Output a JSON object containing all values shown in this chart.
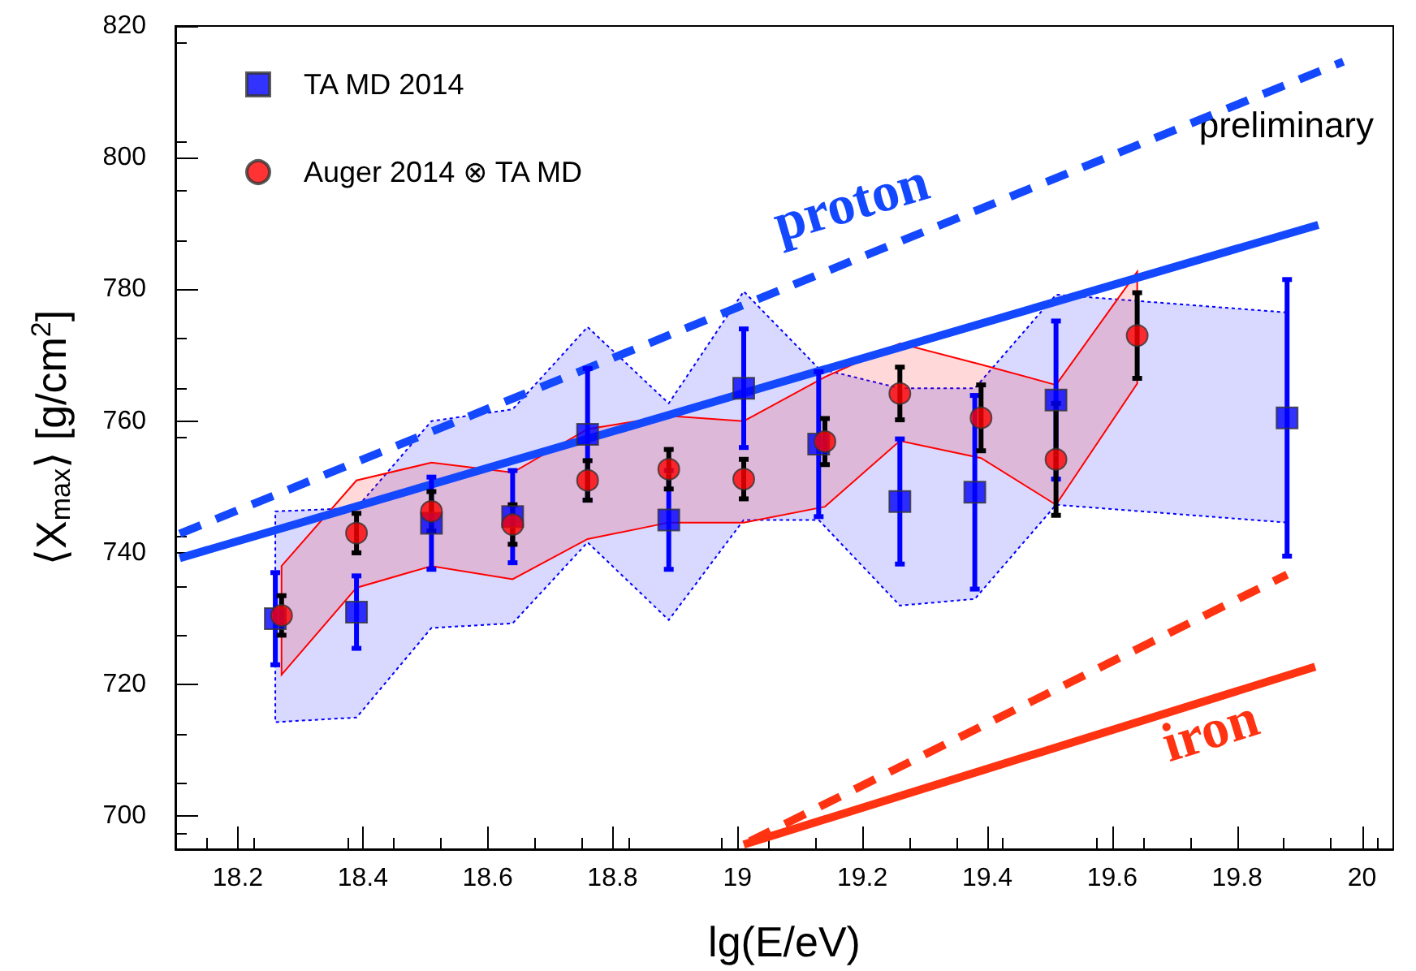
{
  "chart_data": {
    "type": "scatter",
    "xlabel": "lg(E/eV)",
    "ylabel": "⟨X$_{max}$⟩ [g/cm$^{2}$]",
    "xlim": [
      18.1,
      20.05
    ],
    "xticks": [
      18.2,
      18.4,
      18.6,
      18.8,
      19,
      19.2,
      19.4,
      19.6,
      19.8,
      20
    ],
    "ylim": [
      695,
      820
    ],
    "yticks": [
      700,
      720,
      740,
      760,
      780,
      800,
      820
    ],
    "grid": false,
    "legend": "top left",
    "annotations": [
      "preliminary",
      "proton",
      "iron"
    ],
    "series": [
      {
        "name": "TA MD 2014",
        "marker": "square",
        "color": "#0000ff",
        "x": [
          18.26,
          18.39,
          18.51,
          18.64,
          18.76,
          18.89,
          19.01,
          19.13,
          19.26,
          19.38,
          19.51,
          19.88
        ],
        "values": [
          730,
          731,
          744.5,
          745.5,
          758,
          745,
          765,
          756.5,
          747.8,
          749.2,
          763.2,
          760.5
        ],
        "errors": [
          7,
          5.5,
          7,
          7,
          10,
          7.5,
          9,
          11,
          9.5,
          14.7,
          12,
          21
        ],
        "lower": [
          714.3,
          715,
          728.6,
          729.3,
          741.6,
          729.8,
          745,
          745,
          732,
          733,
          747.3,
          744.6
        ],
        "upper": [
          746.3,
          746.8,
          760,
          761.8,
          774.3,
          762.7,
          779.7,
          768,
          765,
          765,
          779.2,
          776.5
        ]
      },
      {
        "name": "Auger 2014 ⊗ TA MD",
        "marker": "circle",
        "color": "#ff0000",
        "x": [
          18.27,
          18.39,
          18.51,
          18.64,
          18.76,
          18.89,
          19.01,
          19.14,
          19.26,
          19.39,
          19.51,
          19.64
        ],
        "values": [
          730.5,
          743,
          746.3,
          744.3,
          751,
          752.7,
          751.2,
          756.9,
          764.2,
          760.5,
          754.2,
          773
        ],
        "errors": [
          3,
          3,
          3,
          3,
          3,
          3,
          3,
          3.5,
          4,
          5,
          8.5,
          6.5
        ],
        "lower": [
          721.5,
          734.7,
          738,
          736,
          742.1,
          744.6,
          744.6,
          747,
          757,
          754.4,
          747.3,
          765.7
        ],
        "upper": [
          738,
          751,
          753.7,
          752.2,
          758.8,
          760.8,
          760,
          766.7,
          771.8,
          768.6,
          765.5,
          782.7
        ]
      },
      {
        "type": "line",
        "color": "#1448ff",
        "line_style": "solid",
        "marker": "none",
        "x": [
          18.107,
          19.93
        ],
        "values": [
          739.2,
          789.8
        ]
      },
      {
        "type": "line",
        "color": "#1448ff",
        "line_style": "dashed",
        "marker": "none",
        "x": [
          18.107,
          19.97
        ],
        "values": [
          742.9,
          814.6
        ]
      },
      {
        "type": "line",
        "color": "#ff3311",
        "line_style": "solid",
        "marker": "none",
        "x": [
          19.01,
          19.925
        ],
        "values": [
          695.7,
          722.7
        ]
      },
      {
        "type": "line",
        "color": "#ff3311",
        "line_style": "dashed",
        "marker": "none",
        "x": [
          19.02,
          19.88
        ],
        "values": [
          696.2,
          736.7
        ]
      }
    ]
  }
}
